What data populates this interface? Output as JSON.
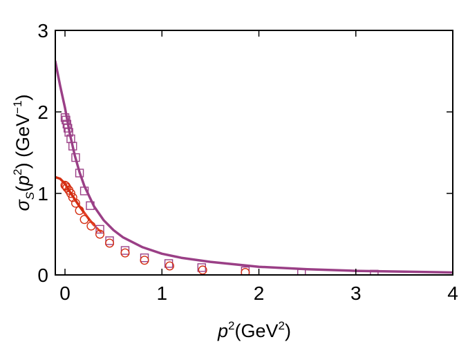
{
  "chart_data": {
    "type": "scatter",
    "title": "",
    "xlabel": {
      "var": "p",
      "exp": "2",
      "unit_open": "(GeV",
      "unit_exp": "2",
      "unit_close": ")"
    },
    "ylabel": {
      "sym": "σ",
      "sub": "S",
      "arg_open": "(",
      "arg_var": "p",
      "arg_exp": "2",
      "arg_close": ")",
      "unit_open": " (GeV",
      "unit_exp": "−1",
      "unit_close": ")"
    },
    "xlim": [
      -0.1,
      4
    ],
    "ylim": [
      0,
      3
    ],
    "xticks": [
      0,
      1,
      2,
      3,
      4
    ],
    "yticks": [
      0,
      1,
      2,
      3
    ],
    "xtick_labels": [
      "0",
      "1",
      "2",
      "3",
      "4"
    ],
    "ytick_labels": [
      "0",
      "1",
      "2",
      "3"
    ],
    "grid": false,
    "colors": {
      "purple": "#9a3f86",
      "red": "#d42e12",
      "red_dashed": "#e8432a"
    },
    "series": [
      {
        "marker": "square",
        "color": "#9a3f86",
        "x": [
          0.0,
          0.01,
          0.02,
          0.03,
          0.04,
          0.06,
          0.08,
          0.11,
          0.15,
          0.2,
          0.26,
          0.36,
          0.46,
          0.62,
          0.82,
          1.07,
          1.41,
          1.86,
          2.44,
          3.19
        ],
        "y": [
          1.93,
          1.9,
          1.85,
          1.8,
          1.75,
          1.67,
          1.58,
          1.44,
          1.25,
          1.03,
          0.85,
          0.56,
          0.42,
          0.3,
          0.21,
          0.14,
          0.09,
          0.05,
          0.02,
          0.01
        ]
      },
      {
        "marker": "circle",
        "color": "#d42e12",
        "x": [
          0.0,
          0.01,
          0.02,
          0.04,
          0.06,
          0.08,
          0.11,
          0.15,
          0.2,
          0.27,
          0.36,
          0.46,
          0.62,
          0.82,
          1.08,
          1.42,
          1.86
        ],
        "y": [
          1.1,
          1.09,
          1.07,
          1.04,
          1.0,
          0.95,
          0.88,
          0.79,
          0.68,
          0.6,
          0.5,
          0.39,
          0.27,
          0.18,
          0.11,
          0.06,
          0.03
        ]
      },
      {
        "type": "line",
        "style": "solid",
        "color": "#9a3f86",
        "x": [
          -0.1,
          -0.05,
          0.0,
          0.05,
          0.1,
          0.15,
          0.2,
          0.3,
          0.4,
          0.5,
          0.6,
          0.8,
          1.0,
          1.2,
          1.5,
          2.0,
          2.5,
          3.0,
          3.5,
          4.0
        ],
        "y": [
          2.62,
          2.32,
          2.05,
          1.73,
          1.47,
          1.26,
          1.09,
          0.84,
          0.67,
          0.55,
          0.46,
          0.34,
          0.26,
          0.21,
          0.16,
          0.1,
          0.07,
          0.05,
          0.04,
          0.03
        ]
      },
      {
        "type": "line",
        "style": "solid",
        "color": "#d42e12",
        "x": [
          -0.1,
          -0.05,
          0.0,
          0.05,
          0.1,
          0.15,
          0.2,
          0.25,
          0.3
        ],
        "y": [
          1.2,
          1.18,
          1.12,
          1.02,
          0.93,
          0.84,
          0.76,
          0.68,
          0.61
        ]
      },
      {
        "type": "line",
        "style": "dashed",
        "color": "#e8432a",
        "x": [
          0.2,
          0.25,
          0.3,
          0.35,
          0.4
        ],
        "y": [
          0.76,
          0.68,
          0.61,
          0.55,
          0.5
        ]
      }
    ]
  }
}
